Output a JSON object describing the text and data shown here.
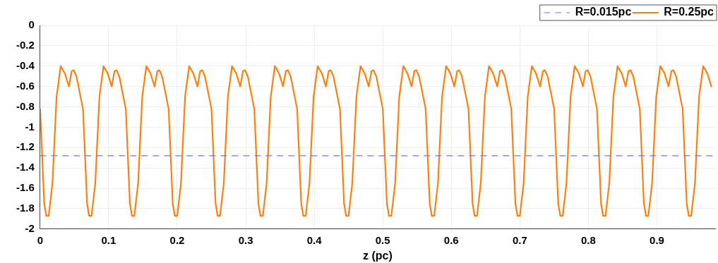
{
  "chart_data": {
    "type": "line",
    "xlabel": "z (pc)",
    "xlim": [
      0,
      0.985
    ],
    "xticks": [
      0,
      0.1,
      0.2,
      0.3,
      0.4,
      0.5,
      0.6,
      0.7,
      0.8,
      0.9
    ],
    "ylim": [
      -2,
      0
    ],
    "yticks": [
      0,
      -0.2,
      -0.4,
      -0.6,
      -0.8,
      -1,
      -1.2,
      -1.4,
      -1.6,
      -1.8,
      -2
    ],
    "grid": true,
    "legend": "top right",
    "marker": "none",
    "series": [
      {
        "name": "R=0.015pc",
        "color": "#7070ff",
        "line_style": "dashed",
        "x": [
          0,
          0.985
        ],
        "values": [
          -1.28,
          -1.28
        ]
      },
      {
        "name": "R=0.25pc",
        "color": "#ff7f0e",
        "line_style": "solid",
        "x": [
          0,
          0.006,
          0.009,
          0.0125,
          0.018,
          0.024,
          0.03,
          0.036,
          0.042,
          0.046,
          0.049,
          0.053,
          0.0625,
          0.0685,
          0.0715,
          0.075,
          0.0805,
          0.0865,
          0.0925,
          0.0985,
          0.1045,
          0.1085,
          0.1115,
          0.1155,
          0.125,
          0.131,
          0.134,
          0.1375,
          0.143,
          0.149,
          0.155,
          0.161,
          0.167,
          0.171,
          0.174,
          0.178,
          0.1875,
          0.1935,
          0.1965,
          0.2,
          0.2055,
          0.2115,
          0.2175,
          0.2235,
          0.2295,
          0.2335,
          0.2365,
          0.2405,
          0.25,
          0.256,
          0.259,
          0.2625,
          0.268,
          0.274,
          0.28,
          0.286,
          0.292,
          0.296,
          0.299,
          0.303,
          0.3125,
          0.3185,
          0.3215,
          0.325,
          0.3305,
          0.3365,
          0.3425,
          0.3485,
          0.3545,
          0.3585,
          0.3615,
          0.3655,
          0.375,
          0.381,
          0.384,
          0.3875,
          0.393,
          0.399,
          0.405,
          0.411,
          0.417,
          0.421,
          0.424,
          0.428,
          0.4375,
          0.4435,
          0.4465,
          0.45,
          0.4555,
          0.4615,
          0.4675,
          0.4735,
          0.4795,
          0.4835,
          0.4865,
          0.4905,
          0.5,
          0.506,
          0.509,
          0.5125,
          0.518,
          0.524,
          0.53,
          0.536,
          0.542,
          0.546,
          0.549,
          0.553,
          0.5625,
          0.5685,
          0.5715,
          0.575,
          0.5805,
          0.5865,
          0.5925,
          0.5985,
          0.6045,
          0.6085,
          0.6115,
          0.6155,
          0.625,
          0.631,
          0.634,
          0.6375,
          0.643,
          0.649,
          0.655,
          0.661,
          0.667,
          0.671,
          0.674,
          0.678,
          0.6875,
          0.6935,
          0.6965,
          0.7,
          0.7055,
          0.7115,
          0.7175,
          0.7235,
          0.7295,
          0.7335,
          0.7365,
          0.7405,
          0.75,
          0.756,
          0.759,
          0.7625,
          0.768,
          0.774,
          0.78,
          0.786,
          0.792,
          0.796,
          0.799,
          0.803,
          0.8125,
          0.8185,
          0.8215,
          0.825,
          0.8305,
          0.8365,
          0.8425,
          0.8485,
          0.8545,
          0.8585,
          0.8615,
          0.8655,
          0.875,
          0.881,
          0.884,
          0.8875,
          0.893,
          0.899,
          0.905,
          0.911,
          0.917,
          0.921,
          0.924,
          0.928,
          0.9375,
          0.9435,
          0.9465,
          0.95,
          0.9555,
          0.9615,
          0.9675,
          0.9735,
          0.9795
        ],
        "values": [
          -0.82,
          -1.75,
          -1.87,
          -1.87,
          -1.55,
          -0.7,
          -0.4,
          -0.47,
          -0.6,
          -0.45,
          -0.44,
          -0.5,
          -0.82,
          -1.75,
          -1.87,
          -1.87,
          -1.55,
          -0.7,
          -0.4,
          -0.47,
          -0.6,
          -0.45,
          -0.44,
          -0.5,
          -0.82,
          -1.75,
          -1.87,
          -1.87,
          -1.55,
          -0.7,
          -0.4,
          -0.47,
          -0.6,
          -0.45,
          -0.44,
          -0.5,
          -0.82,
          -1.75,
          -1.87,
          -1.87,
          -1.55,
          -0.7,
          -0.4,
          -0.47,
          -0.6,
          -0.45,
          -0.44,
          -0.5,
          -0.82,
          -1.75,
          -1.87,
          -1.87,
          -1.55,
          -0.7,
          -0.4,
          -0.47,
          -0.6,
          -0.45,
          -0.44,
          -0.5,
          -0.82,
          -1.75,
          -1.87,
          -1.87,
          -1.55,
          -0.7,
          -0.4,
          -0.47,
          -0.6,
          -0.45,
          -0.44,
          -0.5,
          -0.82,
          -1.75,
          -1.87,
          -1.87,
          -1.55,
          -0.7,
          -0.4,
          -0.47,
          -0.6,
          -0.45,
          -0.44,
          -0.5,
          -0.82,
          -1.75,
          -1.87,
          -1.87,
          -1.55,
          -0.7,
          -0.4,
          -0.47,
          -0.6,
          -0.45,
          -0.44,
          -0.5,
          -0.82,
          -1.75,
          -1.87,
          -1.87,
          -1.55,
          -0.7,
          -0.4,
          -0.47,
          -0.6,
          -0.45,
          -0.44,
          -0.5,
          -0.82,
          -1.75,
          -1.87,
          -1.87,
          -1.55,
          -0.7,
          -0.4,
          -0.47,
          -0.6,
          -0.45,
          -0.44,
          -0.5,
          -0.82,
          -1.75,
          -1.87,
          -1.87,
          -1.55,
          -0.7,
          -0.4,
          -0.47,
          -0.6,
          -0.45,
          -0.44,
          -0.5,
          -0.82,
          -1.75,
          -1.87,
          -1.87,
          -1.55,
          -0.7,
          -0.4,
          -0.47,
          -0.6,
          -0.45,
          -0.44,
          -0.5,
          -0.82,
          -1.75,
          -1.87,
          -1.87,
          -1.55,
          -0.7,
          -0.4,
          -0.47,
          -0.6,
          -0.45,
          -0.44,
          -0.5,
          -0.82,
          -1.75,
          -1.87,
          -1.87,
          -1.55,
          -0.7,
          -0.4,
          -0.47,
          -0.6,
          -0.45,
          -0.44,
          -0.5,
          -0.82,
          -1.75,
          -1.87,
          -1.87,
          -1.55,
          -0.7,
          -0.4,
          -0.47,
          -0.6,
          -0.45,
          -0.44,
          -0.5,
          -0.82,
          -1.75,
          -1.87,
          -1.87,
          -1.55,
          -0.7,
          -0.4,
          -0.47,
          -0.6
        ]
      }
    ]
  }
}
